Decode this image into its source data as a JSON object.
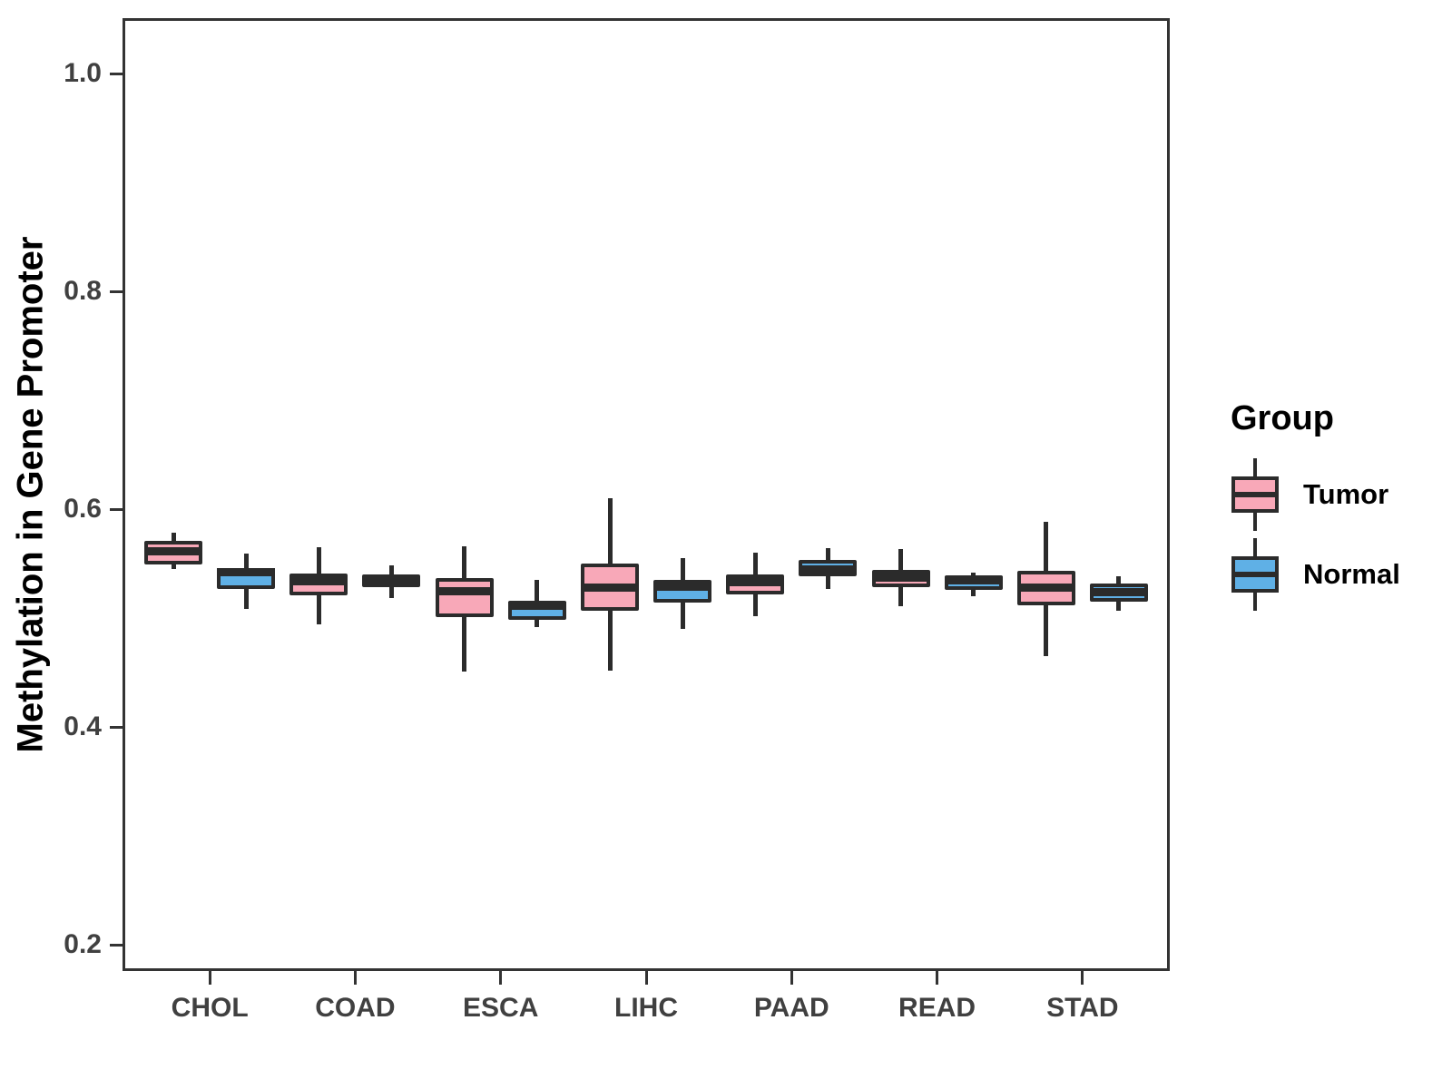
{
  "chart_data": {
    "type": "boxplot",
    "title": "",
    "xlabel": "",
    "ylabel": "Methylation in Gene Promoter",
    "ylim": [
      0.176,
      1.053
    ],
    "grid": false,
    "yticks": [
      {
        "label": "1.0",
        "value": 1.0
      },
      {
        "label": "0.8",
        "value": 0.8
      },
      {
        "label": "0.6",
        "value": 0.6
      },
      {
        "label": "0.4",
        "value": 0.4
      },
      {
        "label": "0.2",
        "value": 0.2
      }
    ],
    "categories": [
      "CHOL",
      "COAD",
      "ESCA",
      "LIHC",
      "PAAD",
      "READ",
      "STAD"
    ],
    "legend": {
      "title": "Group",
      "position": "right",
      "entries": [
        {
          "label": "Tumor",
          "color": "#F8A8B8"
        },
        {
          "label": "Normal",
          "color": "#5FB0E6"
        }
      ]
    },
    "colors": {
      "outline": "#2B2B2B",
      "panel_border": "#333333",
      "tick_label": "#404040"
    },
    "series": [
      {
        "name": "Tumor",
        "color": "#F8A8B8",
        "boxes": [
          {
            "category": "CHOL",
            "whisker_low": 0.545,
            "q1": 0.549,
            "median": 0.561,
            "q3": 0.571,
            "whisker_high": 0.578
          },
          {
            "category": "COAD",
            "whisker_low": 0.494,
            "q1": 0.521,
            "median": 0.534,
            "q3": 0.541,
            "whisker_high": 0.565
          },
          {
            "category": "ESCA",
            "whisker_low": 0.451,
            "q1": 0.501,
            "median": 0.525,
            "q3": 0.537,
            "whisker_high": 0.566
          },
          {
            "category": "LIHC",
            "whisker_low": 0.452,
            "q1": 0.507,
            "median": 0.528,
            "q3": 0.55,
            "whisker_high": 0.61
          },
          {
            "category": "PAAD",
            "whisker_low": 0.502,
            "q1": 0.522,
            "median": 0.533,
            "q3": 0.54,
            "whisker_high": 0.56
          },
          {
            "category": "READ",
            "whisker_low": 0.511,
            "q1": 0.528,
            "median": 0.537,
            "q3": 0.544,
            "whisker_high": 0.563
          },
          {
            "category": "STAD",
            "whisker_low": 0.465,
            "q1": 0.512,
            "median": 0.528,
            "q3": 0.543,
            "whisker_high": 0.588
          }
        ]
      },
      {
        "name": "Normal",
        "color": "#5FB0E6",
        "boxes": [
          {
            "category": "CHOL",
            "whisker_low": 0.508,
            "q1": 0.527,
            "median": 0.542,
            "q3": 0.546,
            "whisker_high": 0.559
          },
          {
            "category": "COAD",
            "whisker_low": 0.518,
            "q1": 0.528,
            "median": 0.534,
            "q3": 0.54,
            "whisker_high": 0.548
          },
          {
            "category": "ESCA",
            "whisker_low": 0.492,
            "q1": 0.498,
            "median": 0.511,
            "q3": 0.516,
            "whisker_high": 0.535
          },
          {
            "category": "LIHC",
            "whisker_low": 0.49,
            "q1": 0.514,
            "median": 0.529,
            "q3": 0.535,
            "whisker_high": 0.555
          },
          {
            "category": "PAAD",
            "whisker_low": 0.527,
            "q1": 0.538,
            "median": 0.545,
            "q3": 0.553,
            "whisker_high": 0.564
          },
          {
            "category": "READ",
            "whisker_low": 0.52,
            "q1": 0.526,
            "median": 0.535,
            "q3": 0.539,
            "whisker_high": 0.542
          },
          {
            "category": "STAD",
            "whisker_low": 0.507,
            "q1": 0.515,
            "median": 0.524,
            "q3": 0.532,
            "whisker_high": 0.538
          }
        ]
      }
    ]
  }
}
